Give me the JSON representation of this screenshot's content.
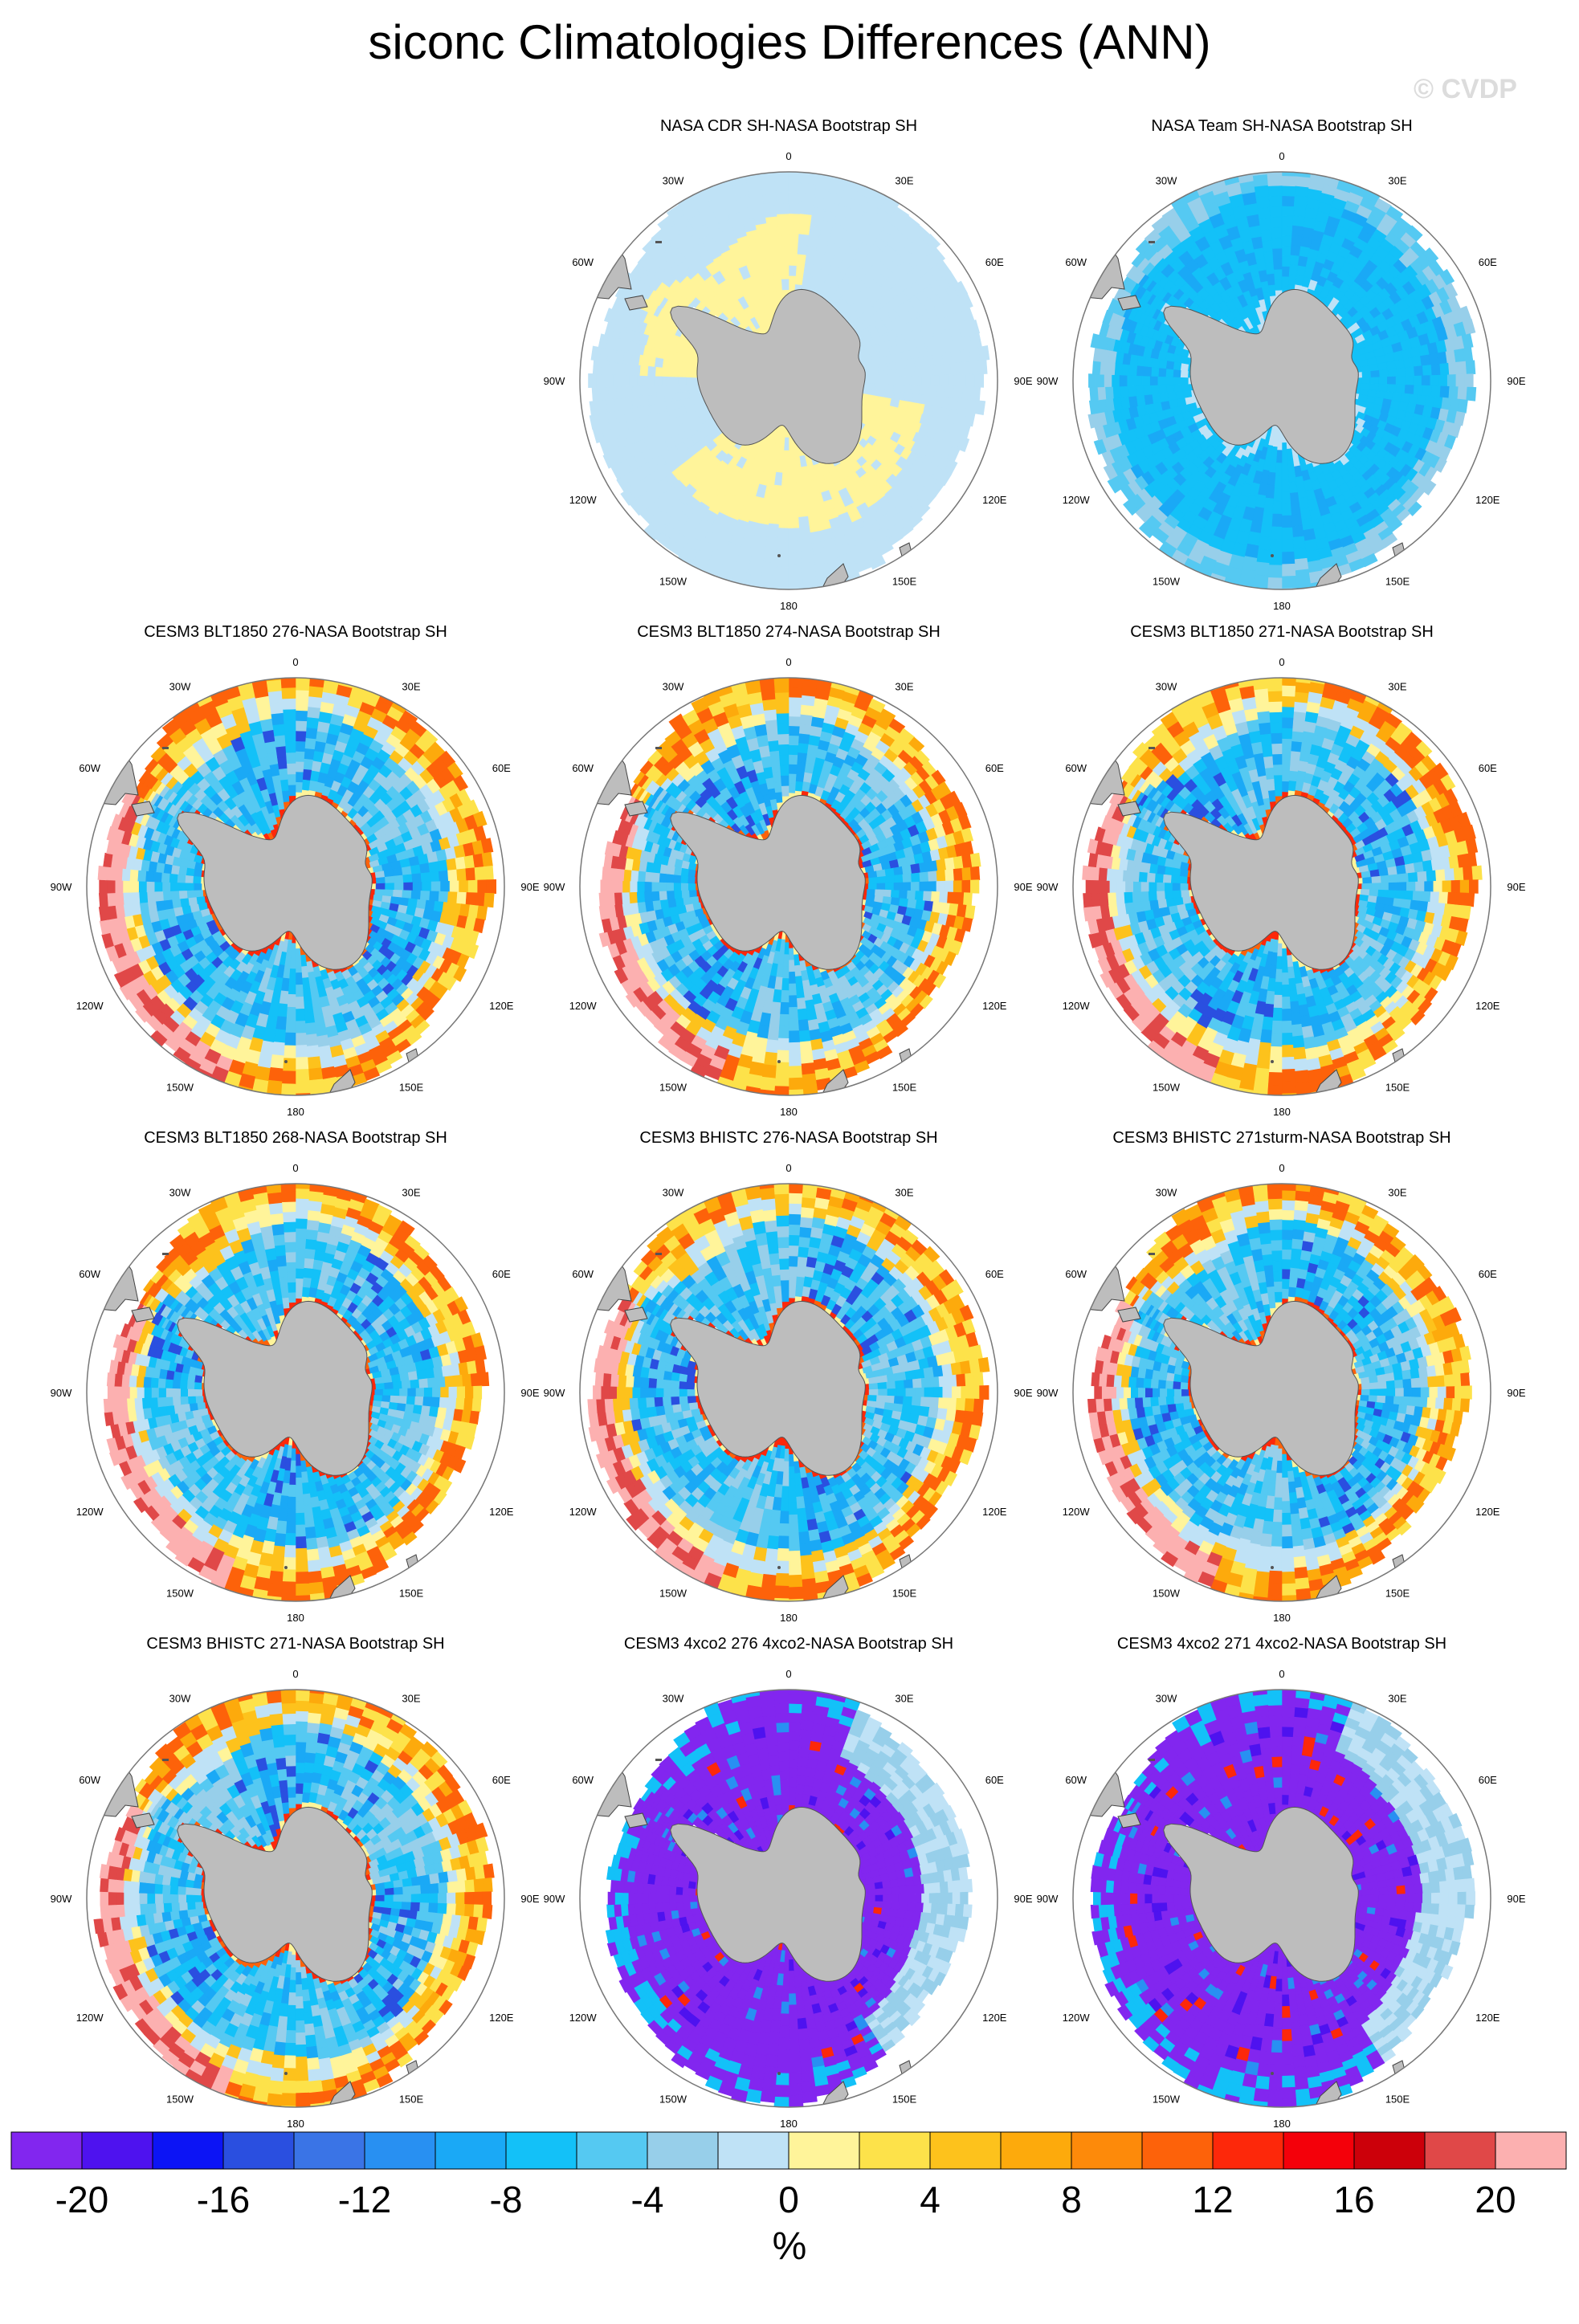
{
  "title": "siconc Climatologies Differences (ANN)",
  "credit": "© CVDP",
  "panels": [
    {
      "name": "NASA CDR SH-NASA Bootstrap SH",
      "pattern": "cdr",
      "empty": false
    },
    {
      "name": "NASA Team SH-NASA Bootstrap SH",
      "pattern": "team",
      "empty": false
    },
    {
      "name": "CESM3 BLT1850 276-NASA Bootstrap SH",
      "pattern": "model",
      "empty": false
    },
    {
      "name": "CESM3 BLT1850 274-NASA Bootstrap SH",
      "pattern": "model",
      "empty": false
    },
    {
      "name": "CESM3 BLT1850 271-NASA Bootstrap SH",
      "pattern": "model",
      "empty": false
    },
    {
      "name": "CESM3 BLT1850 268-NASA Bootstrap SH",
      "pattern": "model",
      "empty": false
    },
    {
      "name": "CESM3 BHISTC 276-NASA Bootstrap SH",
      "pattern": "model",
      "empty": false
    },
    {
      "name": "CESM3 BHISTC 271sturm-NASA Bootstrap SH",
      "pattern": "model",
      "empty": false
    },
    {
      "name": "CESM3 BHISTC 271-NASA Bootstrap SH",
      "pattern": "model",
      "empty": false
    },
    {
      "name": "CESM3 4xco2 276 4xco2-NASA Bootstrap SH",
      "pattern": "co2",
      "empty": false
    },
    {
      "name": "CESM3 4xco2 271 4xco2-NASA Bootstrap SH",
      "pattern": "co2",
      "empty": false
    }
  ],
  "map_labels": {
    "top": "0",
    "bottom": "180",
    "left": "90W",
    "right": "90E",
    "upper_left_1": "30W",
    "upper_left_2": "60W",
    "upper_right_1": "30E",
    "upper_right_2": "60E",
    "lower_left_1": "120W",
    "lower_left_2": "150W",
    "lower_right_1": "120E",
    "lower_right_2": "150E"
  },
  "chart_data": {
    "type": "heatmap",
    "projection": "south-polar stereographic",
    "variable": "siconc",
    "season": "ANN",
    "colorbar": {
      "levels": [
        -22,
        -20,
        -18,
        -16,
        -14,
        -12,
        -10,
        -8,
        -6,
        -4,
        -2,
        0,
        2,
        4,
        6,
        8,
        10,
        12,
        14,
        16,
        18,
        20,
        22
      ],
      "colors": [
        "#8226ef",
        "#4e12ef",
        "#0c14f5",
        "#2a4fe0",
        "#3a74e6",
        "#2890f2",
        "#1aa9f6",
        "#13c1f8",
        "#55c9f2",
        "#97cfea",
        "#bfe2f6",
        "#fff49a",
        "#fde24a",
        "#fdc21c",
        "#fdaa0c",
        "#fd8a0a",
        "#fd620a",
        "#fd280a",
        "#f4000a",
        "#cc000a",
        "#e04848",
        "#fcb0b0"
      ],
      "tick_labels": [
        "-20",
        "-16",
        "-12",
        "-8",
        "-4",
        "0",
        "4",
        "8",
        "12",
        "16",
        "20"
      ],
      "units": "%"
    }
  }
}
